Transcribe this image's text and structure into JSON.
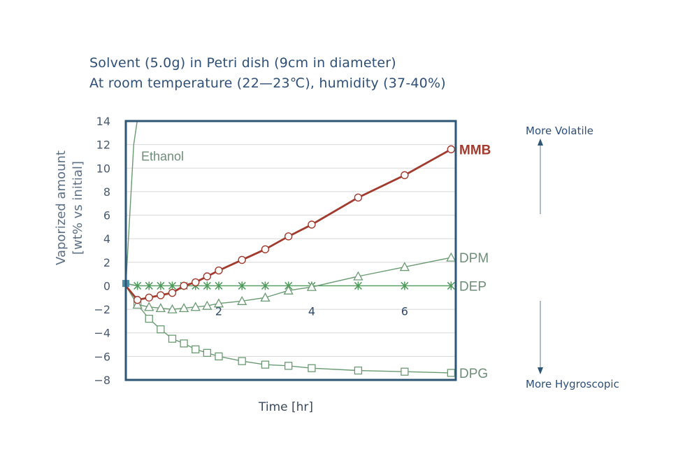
{
  "subtitle_lines": [
    "Solvent (5.0g) in Petri dish (9cm in diameter)",
    "At room temperature (22—23℃), humidity (37-40%)"
  ],
  "side_labels": {
    "top": "More Volatile",
    "bottom": "More Hygroscopic"
  },
  "chart_data": {
    "type": "line",
    "xlabel": "Time [hr]",
    "ylabel_lines": [
      "Vaporized amount",
      "[wt% vs initial]"
    ],
    "xlim": [
      0,
      7.1
    ],
    "ylim": [
      -8,
      14
    ],
    "x_ticks": [
      2,
      4,
      6
    ],
    "y_ticks": [
      14,
      12,
      10,
      8,
      6,
      4,
      2,
      0,
      -2,
      -4,
      -6,
      -8
    ],
    "grid": "horizontal",
    "series": [
      {
        "name": "Ethanol",
        "color": "#6a9a72",
        "marker": "none",
        "x": [
          0,
          0.17,
          0.3
        ],
        "y": [
          0,
          12,
          15.5
        ]
      },
      {
        "name": "MMB",
        "color": "#a23a2e",
        "marker": "circle",
        "x": [
          0,
          0.25,
          0.5,
          0.75,
          1.0,
          1.25,
          1.5,
          1.75,
          2.0,
          2.5,
          3.0,
          3.5,
          4.0,
          5.0,
          6.0,
          7.0
        ],
        "y": [
          0,
          -1.2,
          -1.0,
          -0.8,
          -0.6,
          0.0,
          0.3,
          0.8,
          1.3,
          2.2,
          3.1,
          4.2,
          5.2,
          7.5,
          9.4,
          11.6
        ]
      },
      {
        "name": "DPM",
        "color": "#6a9a72",
        "marker": "triangle",
        "x": [
          0,
          0.25,
          0.5,
          0.75,
          1.0,
          1.25,
          1.5,
          1.75,
          2.0,
          2.5,
          3.0,
          3.5,
          4.0,
          5.0,
          6.0,
          7.0
        ],
        "y": [
          0,
          -1.6,
          -1.8,
          -1.9,
          -2.0,
          -1.9,
          -1.8,
          -1.7,
          -1.5,
          -1.3,
          -1.0,
          -0.4,
          -0.1,
          0.8,
          1.6,
          2.4
        ]
      },
      {
        "name": "DEP",
        "color": "#4e9a5a",
        "marker": "star",
        "x": [
          0,
          0.25,
          0.5,
          0.75,
          1.0,
          1.25,
          1.5,
          1.75,
          2.0,
          2.5,
          3.0,
          3.5,
          4.0,
          5.0,
          6.0,
          7.0
        ],
        "y": [
          0.2,
          0,
          0,
          0,
          0,
          0,
          0,
          0,
          0,
          0,
          0,
          0,
          0,
          0,
          0,
          0
        ]
      },
      {
        "name": "DPG",
        "color": "#6a9a72",
        "marker": "square",
        "x": [
          0,
          0.25,
          0.5,
          0.75,
          1.0,
          1.25,
          1.5,
          1.75,
          2.0,
          2.5,
          3.0,
          3.5,
          4.0,
          5.0,
          6.0,
          7.0
        ],
        "y": [
          0,
          -1.6,
          -2.8,
          -3.7,
          -4.5,
          -4.9,
          -5.4,
          -5.7,
          -6.0,
          -6.4,
          -6.7,
          -6.8,
          -7.0,
          -7.2,
          -7.3,
          -7.4
        ]
      }
    ],
    "annotations": {
      "ethanol": "Ethanol"
    }
  }
}
